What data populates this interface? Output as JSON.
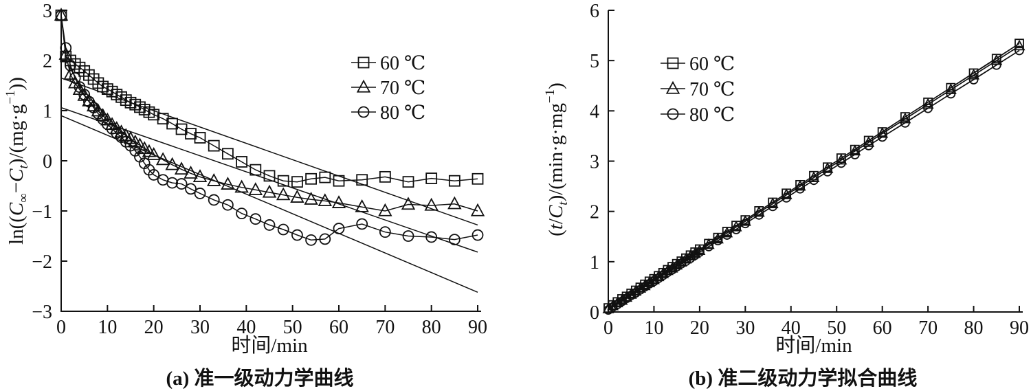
{
  "page": {
    "background": "#ffffff",
    "ink": "#111111"
  },
  "chart_data": [
    {
      "id": "a",
      "type": "line",
      "caption": "(a) 准一级动力学曲线",
      "xlabel": "时间/min",
      "ylabel": "ln((C∞−Ct)/(mg·g−1))",
      "ylabel_segments": [
        {
          "t": "ln(("
        },
        {
          "t": "C",
          "i": true
        },
        {
          "t": "∞",
          "pos": "sub"
        },
        {
          "t": "−"
        },
        {
          "t": "C",
          "i": true
        },
        {
          "t": "t",
          "i": true,
          "pos": "sub"
        },
        {
          "t": ")/(mg·g"
        },
        {
          "t": "−1",
          "pos": "sup"
        },
        {
          "t": "))"
        }
      ],
      "x_axis": {
        "min": 0,
        "max": 90,
        "step": 10
      },
      "y_axis": {
        "min": -3,
        "max": 3,
        "step": 1
      },
      "grid": false,
      "legend_position": "upper-right-inside",
      "legend": [
        {
          "marker": "square",
          "label": "60 ℃"
        },
        {
          "marker": "triangle",
          "label": "70 ℃"
        },
        {
          "marker": "circle",
          "label": "80 ℃"
        }
      ],
      "x": [
        0,
        1,
        2,
        3,
        4,
        5,
        6,
        7,
        8,
        9,
        10,
        11,
        12,
        13,
        14,
        15,
        16,
        17,
        18,
        19,
        20,
        22,
        24,
        26,
        28,
        30,
        33,
        36,
        39,
        42,
        45,
        48,
        51,
        54,
        57,
        60,
        65,
        70,
        75,
        80,
        85,
        90
      ],
      "series": [
        {
          "name": "60 ℃",
          "marker": "square",
          "values": [
            2.9,
            2.08,
            2.0,
            1.93,
            1.86,
            1.79,
            1.71,
            1.63,
            1.55,
            1.48,
            1.43,
            1.38,
            1.32,
            1.27,
            1.21,
            1.16,
            1.12,
            1.07,
            1.02,
            0.97,
            0.92,
            0.84,
            0.74,
            0.63,
            0.54,
            0.46,
            0.3,
            0.14,
            -0.02,
            -0.18,
            -0.3,
            -0.4,
            -0.42,
            -0.36,
            -0.33,
            -0.4,
            -0.38,
            -0.32,
            -0.42,
            -0.35,
            -0.4,
            -0.36
          ]
        },
        {
          "name": "70 ℃",
          "marker": "triangle",
          "values": [
            2.9,
            2.12,
            1.72,
            1.55,
            1.42,
            1.3,
            1.19,
            1.09,
            0.99,
            0.9,
            0.81,
            0.72,
            0.64,
            0.57,
            0.5,
            0.44,
            0.37,
            0.31,
            0.24,
            0.18,
            0.12,
            0.02,
            -0.08,
            -0.17,
            -0.25,
            -0.32,
            -0.4,
            -0.47,
            -0.53,
            -0.58,
            -0.63,
            -0.68,
            -0.73,
            -0.77,
            -0.8,
            -0.84,
            -0.92,
            -1.0,
            -0.87,
            -0.89,
            -0.86,
            -1.0
          ]
        },
        {
          "name": "80 ℃",
          "marker": "circle",
          "values": [
            2.9,
            2.25,
            1.9,
            1.65,
            1.47,
            1.32,
            1.18,
            1.06,
            0.94,
            0.83,
            0.73,
            0.64,
            0.55,
            0.47,
            0.38,
            0.3,
            0.2,
            0.08,
            -0.05,
            -0.18,
            -0.28,
            -0.38,
            -0.44,
            -0.46,
            -0.56,
            -0.65,
            -0.78,
            -0.88,
            -1.05,
            -1.16,
            -1.28,
            -1.37,
            -1.48,
            -1.58,
            -1.56,
            -1.35,
            -1.26,
            -1.42,
            -1.5,
            -1.52,
            -1.57,
            -1.48
          ]
        }
      ],
      "fit_lines": [
        {
          "name": "60 ℃ fit",
          "x": [
            0,
            90
          ],
          "y": [
            1.65,
            -1.28
          ]
        },
        {
          "name": "70 ℃ fit",
          "x": [
            0,
            90
          ],
          "y": [
            1.06,
            -1.82
          ]
        },
        {
          "name": "80 ℃ fit",
          "x": [
            0,
            90
          ],
          "y": [
            0.9,
            -2.62
          ]
        }
      ]
    },
    {
      "id": "b",
      "type": "line",
      "caption": "(b) 准二级动力学拟合曲线",
      "xlabel": "时间/min",
      "ylabel": "(t/Ct)/(min·g·mg−1)",
      "ylabel_segments": [
        {
          "t": "("
        },
        {
          "t": "t",
          "i": true
        },
        {
          "t": "/"
        },
        {
          "t": "C",
          "i": true
        },
        {
          "t": "t",
          "i": true,
          "pos": "sub"
        },
        {
          "t": ")/(min·g·mg"
        },
        {
          "t": "−1",
          "pos": "sup"
        },
        {
          "t": ")"
        }
      ],
      "x_axis": {
        "min": 0,
        "max": 90,
        "step": 10
      },
      "y_axis": {
        "min": 0,
        "max": 6,
        "step": 1
      },
      "grid": false,
      "legend_position": "upper-left-inside",
      "legend": [
        {
          "marker": "square",
          "label": "60 ℃"
        },
        {
          "marker": "triangle",
          "label": "70 ℃"
        },
        {
          "marker": "circle",
          "label": "80 ℃"
        }
      ],
      "x": [
        0,
        1,
        2,
        3,
        4,
        5,
        6,
        7,
        8,
        9,
        10,
        11,
        12,
        13,
        14,
        15,
        16,
        17,
        18,
        19,
        20,
        22,
        24,
        26,
        28,
        30,
        33,
        36,
        39,
        42,
        45,
        48,
        51,
        54,
        57,
        60,
        65,
        70,
        75,
        80,
        85,
        90
      ],
      "series": [
        {
          "name": "60 ℃",
          "marker": "square",
          "values": [
            0.08,
            0.14,
            0.2,
            0.26,
            0.31,
            0.37,
            0.43,
            0.49,
            0.55,
            0.61,
            0.66,
            0.72,
            0.78,
            0.84,
            0.9,
            0.96,
            1.01,
            1.07,
            1.13,
            1.19,
            1.25,
            1.36,
            1.48,
            1.6,
            1.72,
            1.83,
            2.01,
            2.18,
            2.36,
            2.53,
            2.71,
            2.88,
            3.06,
            3.23,
            3.41,
            3.58,
            3.88,
            4.17,
            4.46,
            4.75,
            5.04,
            5.34
          ]
        },
        {
          "name": "70 ℃",
          "marker": "triangle",
          "values": [
            0.06,
            0.12,
            0.18,
            0.23,
            0.29,
            0.35,
            0.41,
            0.47,
            0.52,
            0.58,
            0.64,
            0.7,
            0.76,
            0.82,
            0.87,
            0.93,
            0.99,
            1.05,
            1.11,
            1.16,
            1.22,
            1.34,
            1.45,
            1.57,
            1.69,
            1.8,
            1.98,
            2.15,
            2.33,
            2.5,
            2.67,
            2.85,
            3.02,
            3.2,
            3.37,
            3.55,
            3.84,
            4.13,
            4.42,
            4.71,
            5.0,
            5.29
          ]
        },
        {
          "name": "80 ℃",
          "marker": "circle",
          "values": [
            0.04,
            0.1,
            0.15,
            0.21,
            0.27,
            0.33,
            0.38,
            0.44,
            0.5,
            0.56,
            0.61,
            0.67,
            0.73,
            0.79,
            0.84,
            0.9,
            0.96,
            1.01,
            1.07,
            1.13,
            1.19,
            1.3,
            1.42,
            1.53,
            1.64,
            1.76,
            1.93,
            2.1,
            2.27,
            2.45,
            2.62,
            2.79,
            2.96,
            3.13,
            3.31,
            3.48,
            3.76,
            4.05,
            4.34,
            4.62,
            4.91,
            5.2
          ]
        }
      ],
      "fit_lines": [
        {
          "name": "60 ℃ fit",
          "x": [
            0,
            90
          ],
          "y": [
            0.08,
            5.34
          ]
        },
        {
          "name": "70 ℃ fit",
          "x": [
            0,
            90
          ],
          "y": [
            0.06,
            5.29
          ]
        },
        {
          "name": "80 ℃ fit",
          "x": [
            0,
            90
          ],
          "y": [
            0.04,
            5.2
          ]
        }
      ]
    }
  ]
}
